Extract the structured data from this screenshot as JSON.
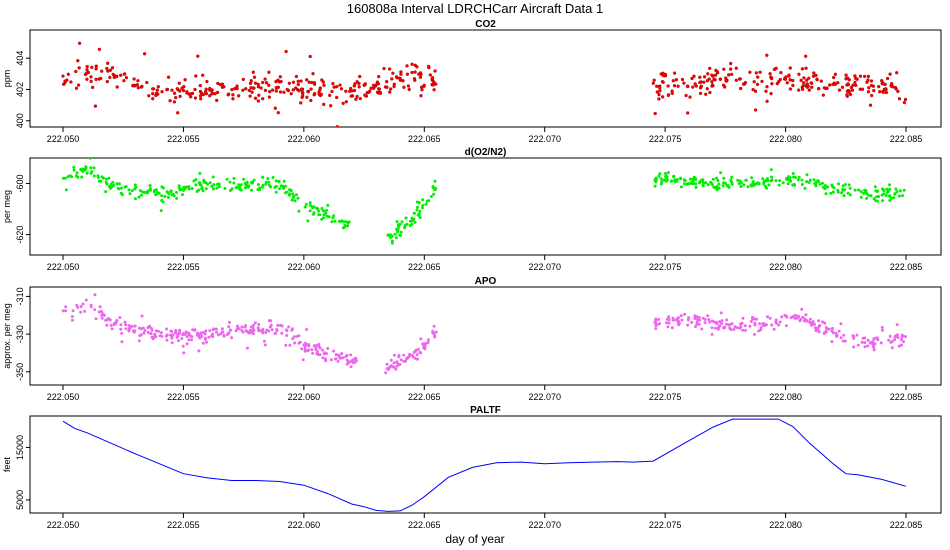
{
  "title": "160808a   Interval LDRCHCarr Aircraft Data 1",
  "xlabel": "day of year",
  "chart_data": [
    {
      "type": "scatter",
      "title": "CO2",
      "ylabel": "ppm",
      "xlim": [
        222.0498,
        222.0852
      ],
      "ylim": [
        399.6,
        405.8
      ],
      "xticks": [
        222.05,
        222.055,
        222.06,
        222.065,
        222.07,
        222.075,
        222.08,
        222.085
      ],
      "xtick_labels": [
        "222.050",
        "222.055",
        "222.060",
        "222.065",
        "222.070",
        "222.075",
        "222.080",
        "222.085"
      ],
      "yticks": [
        400,
        402,
        404
      ],
      "ytick_labels": [
        "400",
        "402",
        "404"
      ],
      "color": "#ff0000",
      "segments": [
        {
          "x_range": [
            222.05,
            222.0655
          ],
          "anchors_x": [
            222.05,
            222.052,
            222.053,
            222.0545,
            222.056,
            222.0575,
            222.059,
            222.0605,
            222.062,
            222.0635,
            222.0645,
            222.0655
          ],
          "anchors_y": [
            402.6,
            403.2,
            402.2,
            401.9,
            401.9,
            402.0,
            402.3,
            401.8,
            401.9,
            402.4,
            402.9,
            402.5
          ],
          "noise": 0.9,
          "outliers": 1.6,
          "count": 330,
          "seed": 11
        },
        {
          "x_range": [
            222.0745,
            222.085
          ],
          "anchors_x": [
            222.0745,
            222.076,
            222.0775,
            222.079,
            222.0805,
            222.082,
            222.0835,
            222.085
          ],
          "anchors_y": [
            402.2,
            402.3,
            402.8,
            402.6,
            402.6,
            402.2,
            402.3,
            402.0
          ],
          "noise": 0.9,
          "outliers": 1.5,
          "count": 230,
          "seed": 23
        }
      ]
    },
    {
      "type": "scatter",
      "title": "d(O2/N2)",
      "ylabel": "per meg",
      "xlim": [
        222.0498,
        222.0852
      ],
      "ylim": [
        -628,
        -590
      ],
      "xticks": [
        222.05,
        222.055,
        222.06,
        222.065,
        222.07,
        222.075,
        222.08,
        222.085
      ],
      "xtick_labels": [
        "222.050",
        "222.055",
        "222.060",
        "222.065",
        "222.070",
        "222.075",
        "222.080",
        "222.085"
      ],
      "yticks": [
        -600,
        -620
      ],
      "ytick_labels": [
        "-600",
        "-620"
      ],
      "color": "#00ee00",
      "segments": [
        {
          "x_range": [
            222.05,
            222.062
          ],
          "anchors_x": [
            222.05,
            222.051,
            222.052,
            222.053,
            222.0545,
            222.056,
            222.0575,
            222.059,
            222.06,
            222.061,
            222.062
          ],
          "anchors_y": [
            -597,
            -594,
            -601,
            -603,
            -604,
            -600,
            -601,
            -600,
            -608,
            -613,
            -616
          ],
          "noise": 3.0,
          "outliers": 5,
          "count": 260,
          "seed": 37
        },
        {
          "x_range": [
            222.0634,
            222.0655
          ],
          "anchors_x": [
            222.0634,
            222.0645,
            222.0655
          ],
          "anchors_y": [
            -622,
            -614,
            -601
          ],
          "noise": 3.0,
          "outliers": 4,
          "count": 60,
          "seed": 41
        },
        {
          "x_range": [
            222.0745,
            222.085
          ],
          "anchors_x": [
            222.0745,
            222.076,
            222.0775,
            222.079,
            222.0805,
            222.082,
            222.0835,
            222.085
          ],
          "anchors_y": [
            -598,
            -599,
            -600,
            -600,
            -598,
            -602,
            -604,
            -604
          ],
          "noise": 3.0,
          "outliers": 4,
          "count": 230,
          "seed": 53
        }
      ]
    },
    {
      "type": "scatter",
      "title": "APO",
      "ylabel": "approx. per meg",
      "xlim": [
        222.0498,
        222.0852
      ],
      "ylim": [
        -357,
        -305
      ],
      "xticks": [
        222.05,
        222.055,
        222.06,
        222.065,
        222.07,
        222.075,
        222.08,
        222.085
      ],
      "xtick_labels": [
        "222.050",
        "222.055",
        "222.060",
        "222.065",
        "222.070",
        "222.075",
        "222.080",
        "222.085"
      ],
      "yticks": [
        -310,
        -330,
        -350
      ],
      "ytick_labels": [
        "-310",
        "-330",
        "-350"
      ],
      "color": "#ee66ee",
      "segments": [
        {
          "x_range": [
            222.05,
            222.0622
          ],
          "anchors_x": [
            222.05,
            222.051,
            222.052,
            222.053,
            222.0545,
            222.056,
            222.0575,
            222.059,
            222.06,
            222.0612,
            222.0622
          ],
          "anchors_y": [
            -318,
            -315,
            -323,
            -328,
            -331,
            -330,
            -328,
            -326,
            -336,
            -342,
            -345
          ],
          "noise": 4.0,
          "outliers": 7,
          "count": 300,
          "seed": 61
        },
        {
          "x_range": [
            222.0634,
            222.0655
          ],
          "anchors_x": [
            222.0634,
            222.0645,
            222.0655
          ],
          "anchors_y": [
            -348,
            -342,
            -328
          ],
          "noise": 4.0,
          "outliers": 6,
          "count": 60,
          "seed": 67
        },
        {
          "x_range": [
            222.0745,
            222.085
          ],
          "anchors_x": [
            222.0745,
            222.076,
            222.0775,
            222.079,
            222.0805,
            222.082,
            222.0835,
            222.085
          ],
          "anchors_y": [
            -324,
            -322,
            -326,
            -325,
            -321,
            -330,
            -335,
            -332
          ],
          "noise": 4.0,
          "outliers": 6,
          "count": 230,
          "seed": 71
        }
      ]
    },
    {
      "type": "line",
      "title": "PALTF",
      "ylabel": "feet",
      "xlim": [
        222.0498,
        222.0852
      ],
      "ylim": [
        2500,
        21000
      ],
      "xticks": [
        222.05,
        222.055,
        222.06,
        222.065,
        222.07,
        222.075,
        222.08,
        222.085
      ],
      "xtick_labels": [
        "222.050",
        "222.055",
        "222.060",
        "222.065",
        "222.070",
        "222.075",
        "222.080",
        "222.085"
      ],
      "yticks": [
        5000,
        15000
      ],
      "ytick_labels": [
        "5000",
        "15000"
      ],
      "color": "#0000ff",
      "x": [
        222.05,
        222.0505,
        222.051,
        222.052,
        222.053,
        222.054,
        222.055,
        222.056,
        222.057,
        222.058,
        222.059,
        222.06,
        222.061,
        222.062,
        222.0625,
        222.063,
        222.0635,
        222.064,
        222.0645,
        222.065,
        222.066,
        222.067,
        222.068,
        222.069,
        222.07,
        222.071,
        222.072,
        222.073,
        222.0737,
        222.0745,
        222.076,
        222.077,
        222.0778,
        222.0785,
        222.0797,
        222.0803,
        222.081,
        222.082,
        222.0825,
        222.083,
        222.084,
        222.085
      ],
      "y": [
        20000,
        18600,
        17800,
        15800,
        13800,
        11900,
        10000,
        9200,
        8700,
        8700,
        8500,
        7800,
        6200,
        4200,
        3700,
        3000,
        2800,
        2900,
        4000,
        5600,
        9300,
        11200,
        12100,
        12200,
        11900,
        12100,
        12200,
        12300,
        12200,
        12400,
        16300,
        18900,
        20400,
        20400,
        20400,
        19000,
        15800,
        11800,
        10000,
        9800,
        8900,
        7600
      ]
    }
  ]
}
